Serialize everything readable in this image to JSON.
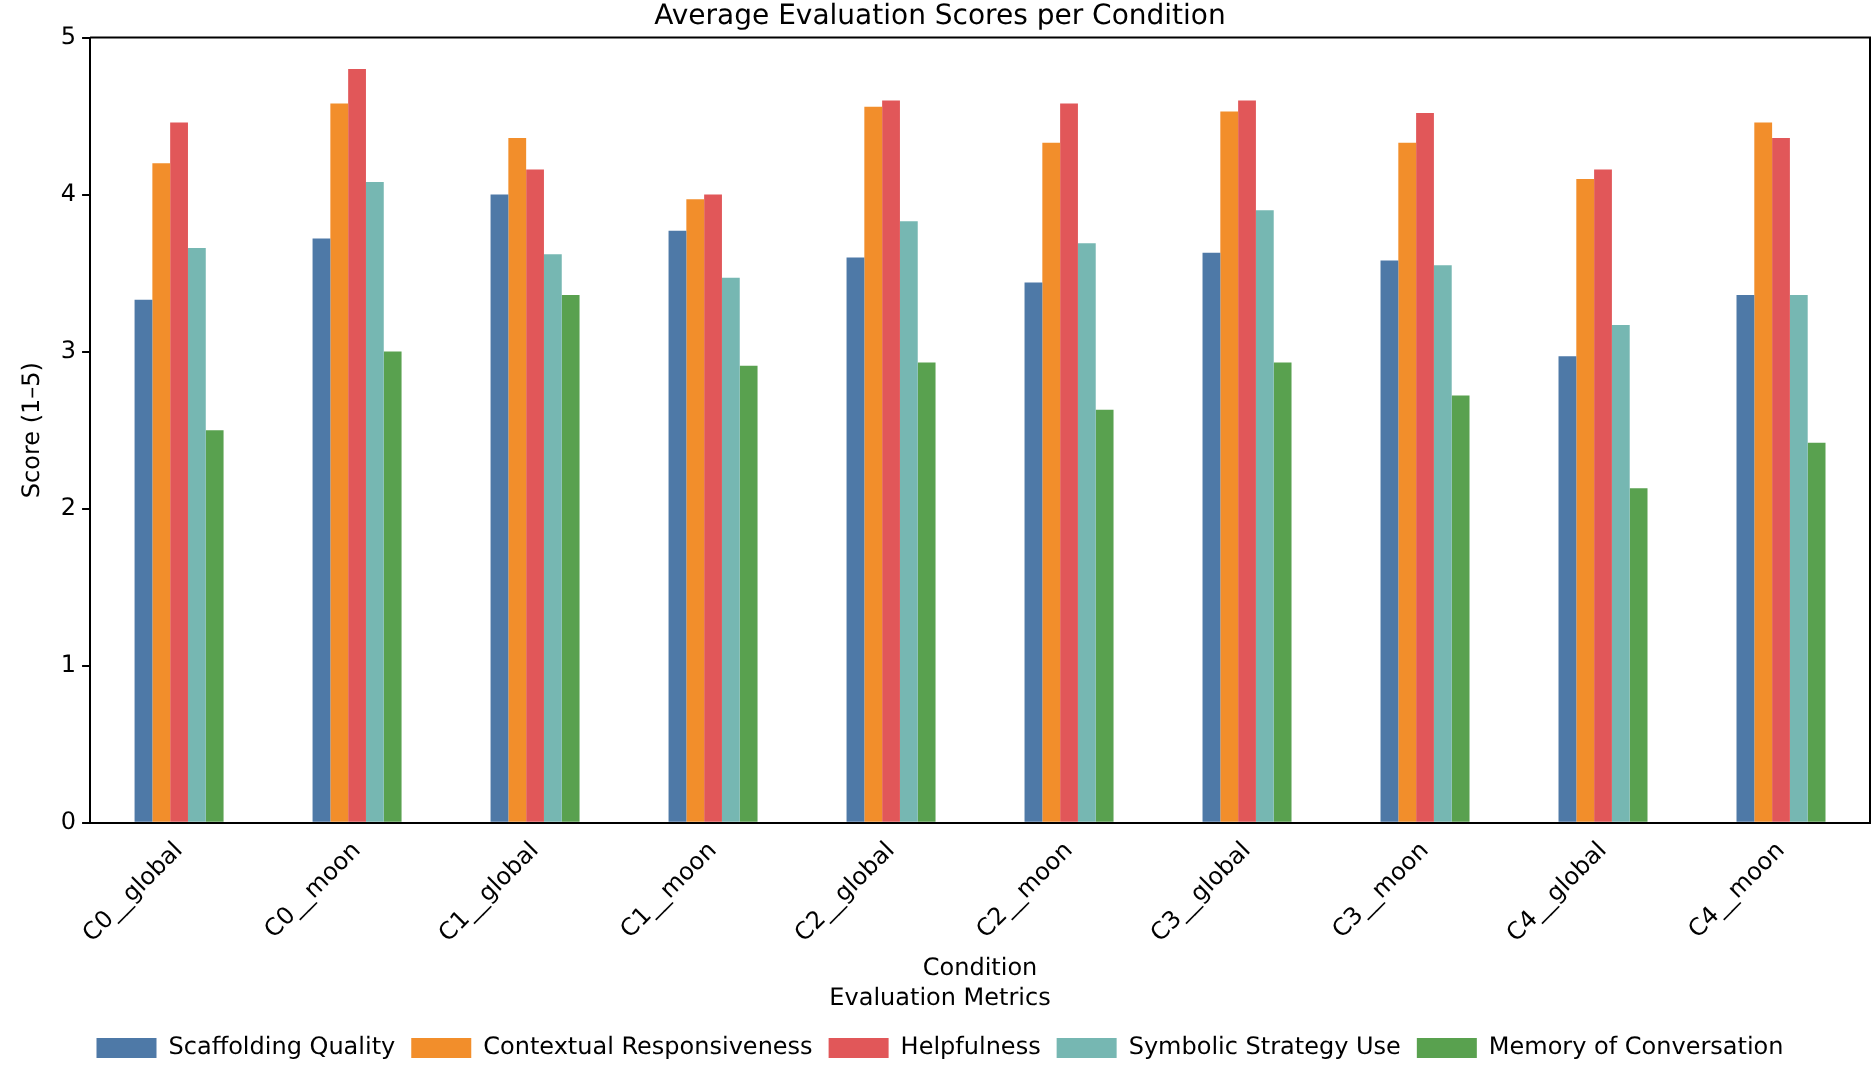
{
  "chart_data": {
    "type": "bar",
    "title": "Average Evaluation Scores per Condition",
    "xlabel": "Condition",
    "ylabel": "Score (1–5)",
    "legend_title": "Evaluation Metrics",
    "categories": [
      "C0__global",
      "C0__moon",
      "C1__global",
      "C1__moon",
      "C2__global",
      "C2__moon",
      "C3__global",
      "C3__moon",
      "C4__global",
      "C4__moon"
    ],
    "series": [
      {
        "name": "Scaffolding Quality",
        "color": "#4e79a7",
        "values": [
          3.33,
          3.72,
          4.0,
          3.77,
          3.6,
          3.44,
          3.63,
          3.58,
          2.97,
          3.36
        ]
      },
      {
        "name": "Contextual Responsiveness",
        "color": "#f28e2b",
        "values": [
          4.2,
          4.58,
          4.36,
          3.97,
          4.56,
          4.33,
          4.53,
          4.33,
          4.1,
          4.46
        ]
      },
      {
        "name": "Helpfulness",
        "color": "#e15759",
        "values": [
          4.46,
          4.8,
          4.16,
          4.0,
          4.6,
          4.58,
          4.6,
          4.52,
          4.16,
          4.36
        ]
      },
      {
        "name": "Symbolic Strategy Use",
        "color": "#76b7b2",
        "values": [
          3.66,
          4.08,
          3.62,
          3.47,
          3.83,
          3.69,
          3.9,
          3.55,
          3.17,
          3.36
        ]
      },
      {
        "name": "Memory of Conversation",
        "color": "#59a14f",
        "values": [
          2.5,
          3.0,
          3.36,
          2.91,
          2.93,
          2.63,
          2.93,
          2.72,
          2.13,
          2.42
        ]
      }
    ],
    "ylim": [
      0,
      5
    ],
    "yticks": [
      0,
      1,
      2,
      3,
      4,
      5
    ],
    "grid": false,
    "legend": "bottom"
  }
}
